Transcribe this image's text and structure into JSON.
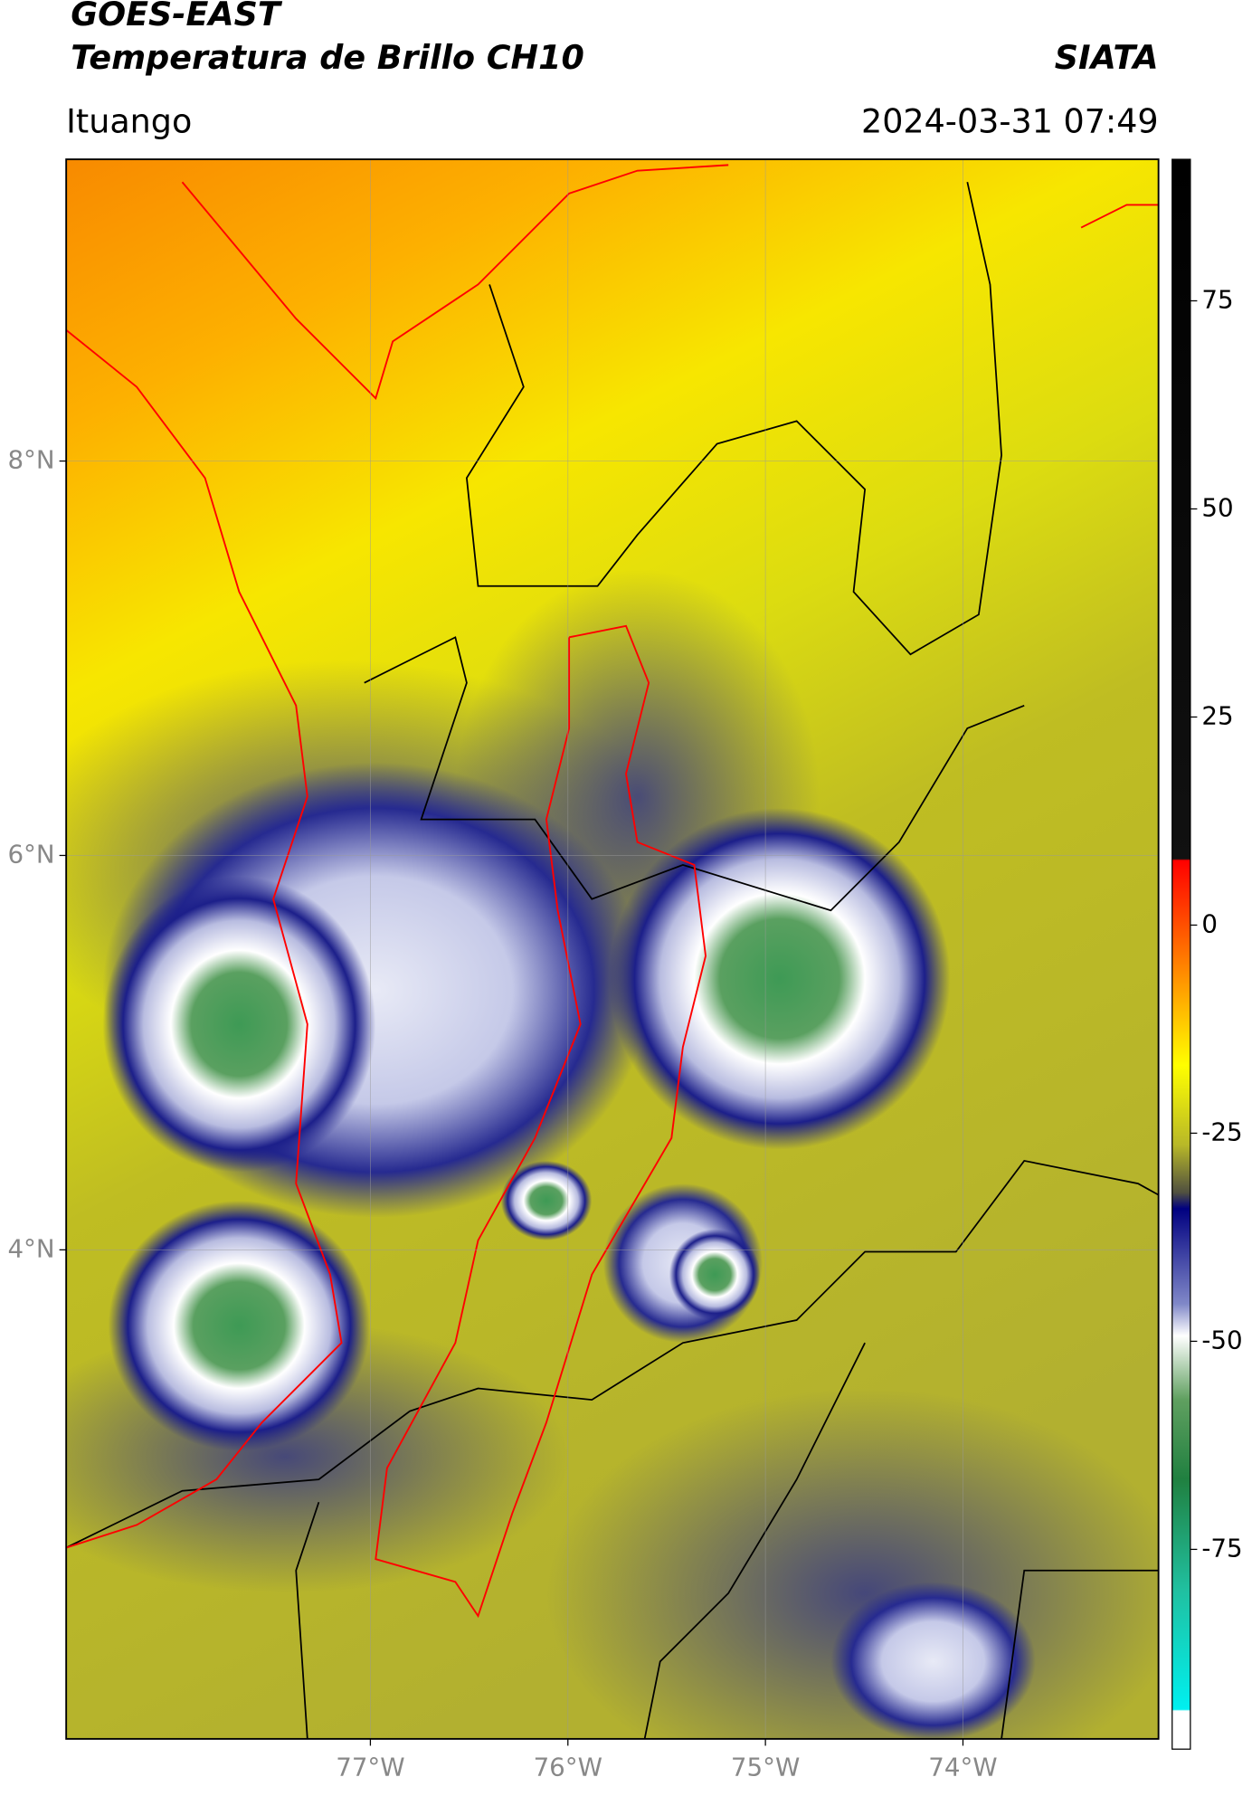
{
  "header": {
    "title": "GOES-EAST",
    "subtitle": "Temperatura de Brillo CH10",
    "org": "SIATA",
    "place": "Ituango",
    "datetime": "2024-03-31 07:49"
  },
  "map": {
    "lat_range": [
      1.52,
      9.53
    ],
    "lon_range": [
      -78.54,
      -73.01
    ],
    "lat_labels": [
      {
        "value": 8,
        "label": "8°N"
      },
      {
        "value": 6,
        "label": "6°N"
      },
      {
        "value": 4,
        "label": "4°N"
      }
    ],
    "lon_labels": [
      {
        "value": -77,
        "label": "77°W"
      },
      {
        "value": -76,
        "label": "76°W"
      },
      {
        "value": -75,
        "label": "75°W"
      },
      {
        "value": -74,
        "label": "74°W"
      }
    ]
  },
  "colorbar": {
    "lim": [
      -99,
      92
    ],
    "ticks": [
      75,
      50,
      25,
      0,
      -25,
      -50,
      -75
    ]
  }
}
